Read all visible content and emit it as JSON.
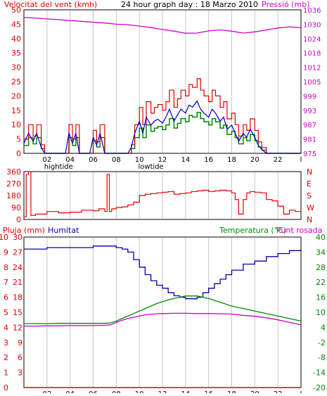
{
  "colors": {
    "wind": "#e00000",
    "gust": "#e00000",
    "avg": "#0000cc",
    "green": "#008800",
    "pressure": "#cc00cc",
    "humidity": "#0000aa",
    "temperature": "#008800",
    "dew": "#cc00cc",
    "rain": "#e00000",
    "grid": "#c8c8c8",
    "frame": "#000000",
    "black": "#000000"
  },
  "header": {
    "wind_label": "Velocitat del vent (kmh)",
    "title": "24 hour graph day : 18 Marzo 2010",
    "pressure_label": "Pressió (mb)"
  },
  "bottom_header": {
    "rain_label": "Pluja (mm)",
    "humidity_label": "Humitat",
    "temp_label": "Temperatura (°C)",
    "dew_label": "Punt rosada"
  },
  "time_axis": {
    "ticks": [
      "02",
      "04",
      "06",
      "08",
      "10",
      "12",
      "14",
      "16",
      "18",
      "20",
      "22",
      "I"
    ],
    "tide_high": "hightide",
    "tide_low": "lowtide"
  },
  "chart_data": [
    {
      "type": "line",
      "title": "24 hour graph day : 18 Marzo 2010",
      "xlabel": "",
      "ylabel": "Velocitat del vent (kmh)",
      "ylim": [
        0,
        50
      ],
      "y_ticks": [
        "0",
        "5",
        "10",
        "15",
        "20",
        "25",
        "30",
        "35",
        "40",
        "45",
        "50"
      ],
      "y2label": "Pressió (mb)",
      "y2lim": [
        975,
        1035
      ],
      "y2_ticks": [
        "975",
        "981",
        "987",
        "993",
        "999",
        "1005",
        "1012",
        "1018",
        "1024",
        "1030",
        "1036"
      ],
      "series": [
        {
          "name": "Velocitat del vent (kmh)",
          "hours": [
            0,
            0.4,
            0.8,
            1.1,
            1.5,
            1.8,
            2.2,
            2.6,
            3,
            3.3,
            3.6,
            3.9,
            4.2,
            4.5,
            4.8,
            5.1,
            5.4,
            5.7,
            6,
            6.3,
            6.6,
            7,
            7.3,
            7.6,
            8,
            8.3,
            8.6,
            9,
            9.3,
            9.6,
            10,
            10.3,
            10.6,
            11,
            11.3,
            11.6,
            12,
            12.3,
            12.6,
            13,
            13.3,
            13.6,
            14,
            14.3,
            14.6,
            15,
            15.3,
            15.6,
            16,
            16.3,
            16.6,
            17,
            17.3,
            17.6,
            18,
            18.3,
            18.6,
            19,
            19.3,
            19.6,
            20,
            20.3,
            20.6,
            21,
            21.3,
            21.6,
            22,
            22.5,
            23,
            23.5,
            24
          ],
          "values": [
            5,
            10,
            6,
            10,
            3,
            0,
            0,
            0,
            0,
            0,
            0,
            10,
            5,
            10,
            0,
            0,
            0,
            0,
            8,
            4,
            10,
            0,
            0,
            0,
            0,
            0,
            0,
            0,
            3,
            10,
            16,
            10,
            18,
            14,
            16,
            17,
            15,
            18,
            22,
            16,
            19,
            22,
            20,
            24,
            23,
            26,
            22,
            20,
            18,
            22,
            20,
            16,
            18,
            12,
            14,
            10,
            6,
            10,
            8,
            12,
            8,
            4,
            2,
            0,
            0,
            0,
            0,
            0,
            0,
            0,
            0
          ]
        },
        {
          "name": "Pressió (mb)",
          "hours": [
            0,
            1,
            2,
            3,
            4,
            5,
            6,
            7,
            8,
            9,
            10,
            11,
            12,
            13,
            14,
            15,
            16,
            17,
            18,
            19,
            20,
            21,
            22,
            23,
            24
          ],
          "values": [
            1031.8,
            1031.6,
            1031.2,
            1030.9,
            1030.5,
            1030.2,
            1029.8,
            1029.5,
            1029.0,
            1028.8,
            1028.2,
            1027.6,
            1026.8,
            1026.1,
            1025.2,
            1025.3,
            1026.2,
            1026.6,
            1026.1,
            1025.3,
            1025.8,
            1026.6,
            1027.4,
            1027.9,
            1027.5
          ]
        }
      ]
    },
    {
      "type": "line",
      "title": "",
      "ylim": [
        0,
        360
      ],
      "y_ticks": [
        "0",
        "90",
        "180",
        "270",
        "360"
      ],
      "y2_ticks": [
        "N",
        "W",
        "S",
        "E",
        "N"
      ],
      "series": [
        {
          "name": "",
          "hours": [
            0,
            0.2,
            0.4,
            0.6,
            1,
            2,
            3,
            4,
            5,
            6,
            6.5,
            7,
            7.2,
            7.4,
            7.6,
            8,
            8.5,
            9,
            9.5,
            10,
            10.5,
            11,
            11.5,
            12,
            12.5,
            13,
            13.5,
            14,
            14.5,
            15,
            15.5,
            16,
            16.5,
            17,
            17.5,
            18,
            18.3,
            18.6,
            19,
            19.3,
            19.6,
            20,
            20.5,
            21,
            21.5,
            22,
            22.5,
            23,
            23.5,
            24
          ],
          "values": [
            20,
            340,
            360,
            30,
            40,
            60,
            50,
            55,
            70,
            65,
            80,
            60,
            340,
            60,
            80,
            90,
            95,
            110,
            130,
            180,
            190,
            195,
            200,
            205,
            210,
            190,
            195,
            200,
            210,
            215,
            220,
            210,
            215,
            220,
            215,
            200,
            150,
            40,
            150,
            200,
            210,
            205,
            200,
            150,
            140,
            100,
            40,
            70,
            60,
            70
          ]
        }
      ]
    },
    {
      "type": "line",
      "title": "",
      "ylabel": "Pluja (mm)",
      "ylim": [
        0,
        10
      ],
      "y_ticks": [
        "0",
        "1",
        "2",
        "3",
        "4",
        "5",
        "6",
        "7",
        "8",
        "9",
        "10"
      ],
      "hum_ticks": [
        "0",
        "10",
        "20",
        "30",
        "40",
        "50",
        "60",
        "70",
        "80",
        "90",
        "100"
      ],
      "y2label": "Temperatura (°C)",
      "y2lim": [
        -20,
        40
      ],
      "y2_ticks": [
        "-20",
        "-14",
        "-8",
        "-2",
        "4",
        "10",
        "16",
        "22",
        "28",
        "34",
        "40"
      ],
      "rain_ticks": [
        "0",
        "3",
        "6",
        "9",
        "12",
        "15",
        "18",
        "21",
        "24",
        "27",
        "30"
      ],
      "series": [
        {
          "name": "Humitat",
          "hours": [
            0,
            1,
            2,
            3,
            4,
            5,
            6,
            7,
            7.5,
            8,
            8.5,
            9,
            9.5,
            10,
            10.5,
            11,
            11.5,
            12,
            12.5,
            13,
            13.5,
            14,
            14.5,
            15,
            15.5,
            16,
            16.5,
            17,
            17.5,
            18,
            19,
            20,
            21,
            22,
            23,
            24
          ],
          "values": [
            92,
            92,
            93,
            93,
            93,
            93,
            94,
            94,
            94,
            93,
            92,
            90,
            85,
            80,
            75,
            71,
            68,
            66,
            63,
            61,
            60,
            59,
            59,
            60,
            63,
            66,
            69,
            72,
            75,
            78,
            82,
            84,
            87,
            89,
            91,
            92
          ]
        },
        {
          "name": "Temperatura (°C)",
          "hours": [
            0,
            1,
            2,
            3,
            4,
            5,
            6,
            7,
            7.5,
            8,
            8.5,
            9,
            9.5,
            10,
            10.5,
            11,
            11.5,
            12,
            12.5,
            13,
            13.5,
            14,
            14.5,
            15,
            15.5,
            16,
            17,
            18,
            19,
            20,
            21,
            22,
            23,
            24
          ],
          "values": [
            5.5,
            5.5,
            5.5,
            5.6,
            5.6,
            5.6,
            5.6,
            5.6,
            5.8,
            6.5,
            7.5,
            8.5,
            9.5,
            10.5,
            11.5,
            12.5,
            13.5,
            14.2,
            15,
            15.5,
            16,
            16.5,
            16.5,
            16.5,
            16,
            15.5,
            14,
            12.5,
            11.5,
            10.5,
            9.5,
            8.5,
            7.5,
            6.5
          ]
        },
        {
          "name": "Punt rosada",
          "hours": [
            0,
            1,
            2,
            3,
            4,
            5,
            6,
            7,
            7.5,
            8,
            8.5,
            9,
            9.5,
            10,
            10.5,
            11,
            11.5,
            12,
            13,
            14,
            15,
            16,
            17,
            18,
            19,
            20,
            21,
            22,
            23,
            24
          ],
          "values": [
            4.5,
            4.5,
            4.6,
            4.6,
            4.7,
            4.7,
            4.7,
            4.8,
            5,
            6,
            6.8,
            7.5,
            8,
            8.5,
            9,
            9.2,
            9.4,
            9.5,
            9.6,
            9.6,
            9.5,
            9.5,
            9.4,
            9.3,
            8.8,
            8.4,
            7.8,
            7,
            6,
            5
          ]
        },
        {
          "name": "Pluja (mm)",
          "hours": [
            0,
            24
          ],
          "values": [
            0,
            0
          ]
        }
      ]
    }
  ]
}
